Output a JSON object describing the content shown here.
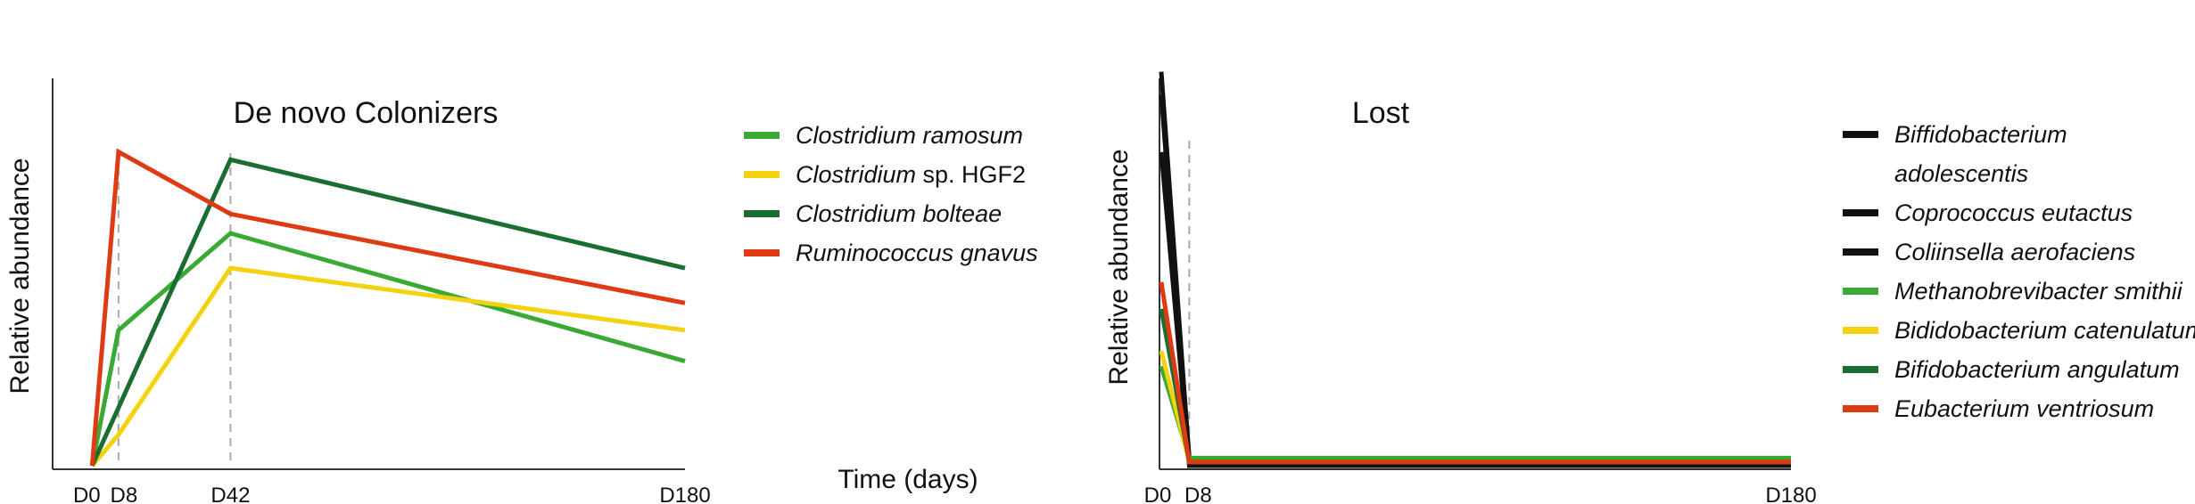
{
  "colors": {
    "green": "#3aaa35",
    "yellow": "#f5d20f",
    "dark_green": "#1b6e31",
    "red": "#de3b14",
    "black": "#111111",
    "guide": "#aaaaaa"
  },
  "shared_xlabel": "Time (days)",
  "chart_data": [
    {
      "type": "line",
      "title": "De novo Colonizers",
      "xlabel": "Time (days)",
      "ylabel": "Relative abundance",
      "x": [
        0,
        8,
        42,
        180
      ],
      "xticks": [
        {
          "value": 0,
          "label": "D0"
        },
        {
          "value": 8,
          "label": "D8"
        },
        {
          "value": 42,
          "label": "D42"
        },
        {
          "value": 180,
          "label": "D180"
        }
      ],
      "guides": [
        8,
        42
      ],
      "xlim": [
        -12,
        180
      ],
      "ylim": [
        0,
        1
      ],
      "grid": false,
      "legend_position": "right",
      "series": [
        {
          "name": "Clostridium ramosum",
          "name_parts": [
            {
              "text": "Clostridium ramosum",
              "italic": true
            }
          ],
          "color": "#3aaa35",
          "values": [
            0.0,
            0.35,
            0.6,
            0.27
          ]
        },
        {
          "name": "Clostridium sp. HGF2",
          "name_parts": [
            {
              "text": "Clostridium",
              "italic": true
            },
            {
              "text": " sp. HGF2",
              "italic": false
            }
          ],
          "color": "#f5d20f",
          "values": [
            0.0,
            0.08,
            0.51,
            0.35
          ]
        },
        {
          "name": "Clostridium bolteae",
          "name_parts": [
            {
              "text": "Clostridium bolteae",
              "italic": true
            }
          ],
          "color": "#1b6e31",
          "values": [
            0.0,
            0.15,
            0.79,
            0.51
          ]
        },
        {
          "name": "Ruminococcus gnavus",
          "name_parts": [
            {
              "text": "Ruminococcus gnavus",
              "italic": true
            }
          ],
          "color": "#de3b14",
          "values": [
            0.0,
            0.81,
            0.65,
            0.42
          ]
        }
      ]
    },
    {
      "type": "line",
      "title": "Lost",
      "xlabel": "Time (days)",
      "ylabel": "Relative abundance",
      "x": [
        0,
        8,
        180
      ],
      "xticks": [
        {
          "value": 0,
          "label": "D0"
        },
        {
          "value": 8,
          "label": "D8"
        },
        {
          "value": 180,
          "label": "D180"
        }
      ],
      "guides": [
        8
      ],
      "xlim": [
        0,
        180
      ],
      "ylim": [
        0,
        1.05
      ],
      "grid": false,
      "legend_position": "right",
      "series": [
        {
          "name": "Biffidobacterium adolescentis",
          "name_lines": [
            "Biffidobacterium",
            "adolescentis"
          ],
          "color": "#111111",
          "values": [
            0.82,
            0.0,
            0.0
          ]
        },
        {
          "name": "Coprococcus eutactus",
          "color": "#111111",
          "values": [
            1.03,
            0.01,
            0.0
          ]
        },
        {
          "name": "Coliinsella aerofaciens",
          "color": "#111111",
          "values": [
            0.97,
            0.02,
            0.01
          ]
        },
        {
          "name": "Methanobrevibacter smithii",
          "color": "#3aaa35",
          "values": [
            0.26,
            0.02,
            0.02
          ]
        },
        {
          "name": "Bididobacterium catenulatum",
          "color": "#f5d20f",
          "values": [
            0.3,
            0.01,
            0.01
          ]
        },
        {
          "name": "Bifidobacterium angulatum",
          "color": "#1b6e31",
          "values": [
            0.41,
            0.01,
            0.01
          ]
        },
        {
          "name": "Eubacterium ventriosum",
          "color": "#de3b14",
          "values": [
            0.48,
            0.01,
            0.01
          ]
        }
      ]
    }
  ]
}
